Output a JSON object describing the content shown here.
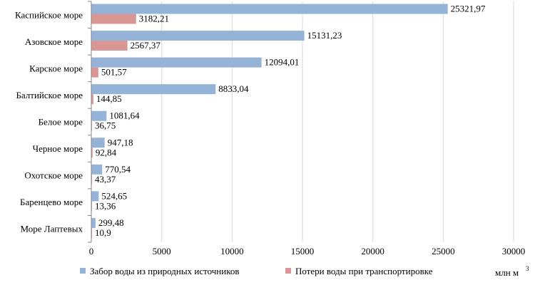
{
  "chart_data": {
    "type": "bar",
    "orientation": "horizontal",
    "categories": [
      "Каспийское  море",
      "Азовское море",
      "Карское море",
      "Балтийское  море",
      "Белое море",
      "Черное  море",
      "Охотское море",
      "Баренцево  море",
      "Море Лаптевых"
    ],
    "series": [
      {
        "name": "Забор воды из природных  источников",
        "color": "#95B3D7",
        "values": [
          25321.97,
          15131.23,
          12094.01,
          8833.04,
          1081.64,
          947.18,
          770.54,
          524.65,
          299.48
        ],
        "labels": [
          "25321,97",
          "15131,23",
          "12094,01",
          "8833,04",
          "1081,64",
          "947,18",
          "770,54",
          "524,65",
          "299,48"
        ]
      },
      {
        "name": "Потери воды при транспортировке",
        "color": "#D99694",
        "values": [
          3182.21,
          2567.37,
          501.57,
          144.85,
          36.75,
          92.84,
          43.37,
          13.36,
          10.9
        ],
        "labels": [
          "3182,21",
          "2567,37",
          "501,57",
          "144,85",
          "36,75",
          "92,84",
          "43,37",
          "13,36",
          "10,9"
        ]
      }
    ],
    "xlim": [
      0,
      30000
    ],
    "xticks": [
      "0",
      "5000",
      "10000",
      "15000",
      "20000",
      "25000",
      "30000"
    ],
    "xtick_values": [
      0,
      5000,
      10000,
      15000,
      20000,
      25000,
      30000
    ],
    "unit_label": "млн м",
    "unit_superscript": "3",
    "legend_position": "bottom",
    "grid": "vertical",
    "gridline_color": "#D9D9D9"
  }
}
